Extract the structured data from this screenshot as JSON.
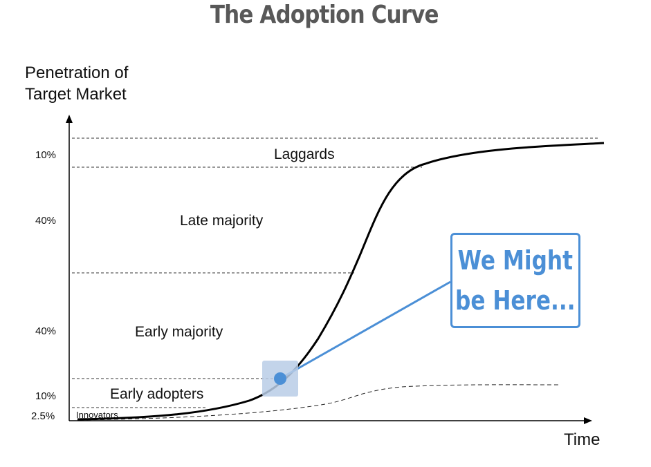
{
  "title": "The Adoption Curve",
  "y_axis": {
    "label_line1": "Penetration of",
    "label_line2": "Target Market"
  },
  "x_axis": {
    "label": "Time"
  },
  "segments": [
    {
      "name": "Innovators",
      "percent": "2.5%"
    },
    {
      "name": "Early adopters",
      "percent": "10%"
    },
    {
      "name": "Early majority",
      "percent": "40%"
    },
    {
      "name": "Late majority",
      "percent": "40%"
    },
    {
      "name": "Laggards",
      "percent": "10%"
    }
  ],
  "callout": {
    "line1": "We Might",
    "line2": "be Here..."
  },
  "colors": {
    "title": "#585858",
    "accent": "#4b8fd6",
    "marker_box": "#b8cde6",
    "curve": "#000000"
  }
}
